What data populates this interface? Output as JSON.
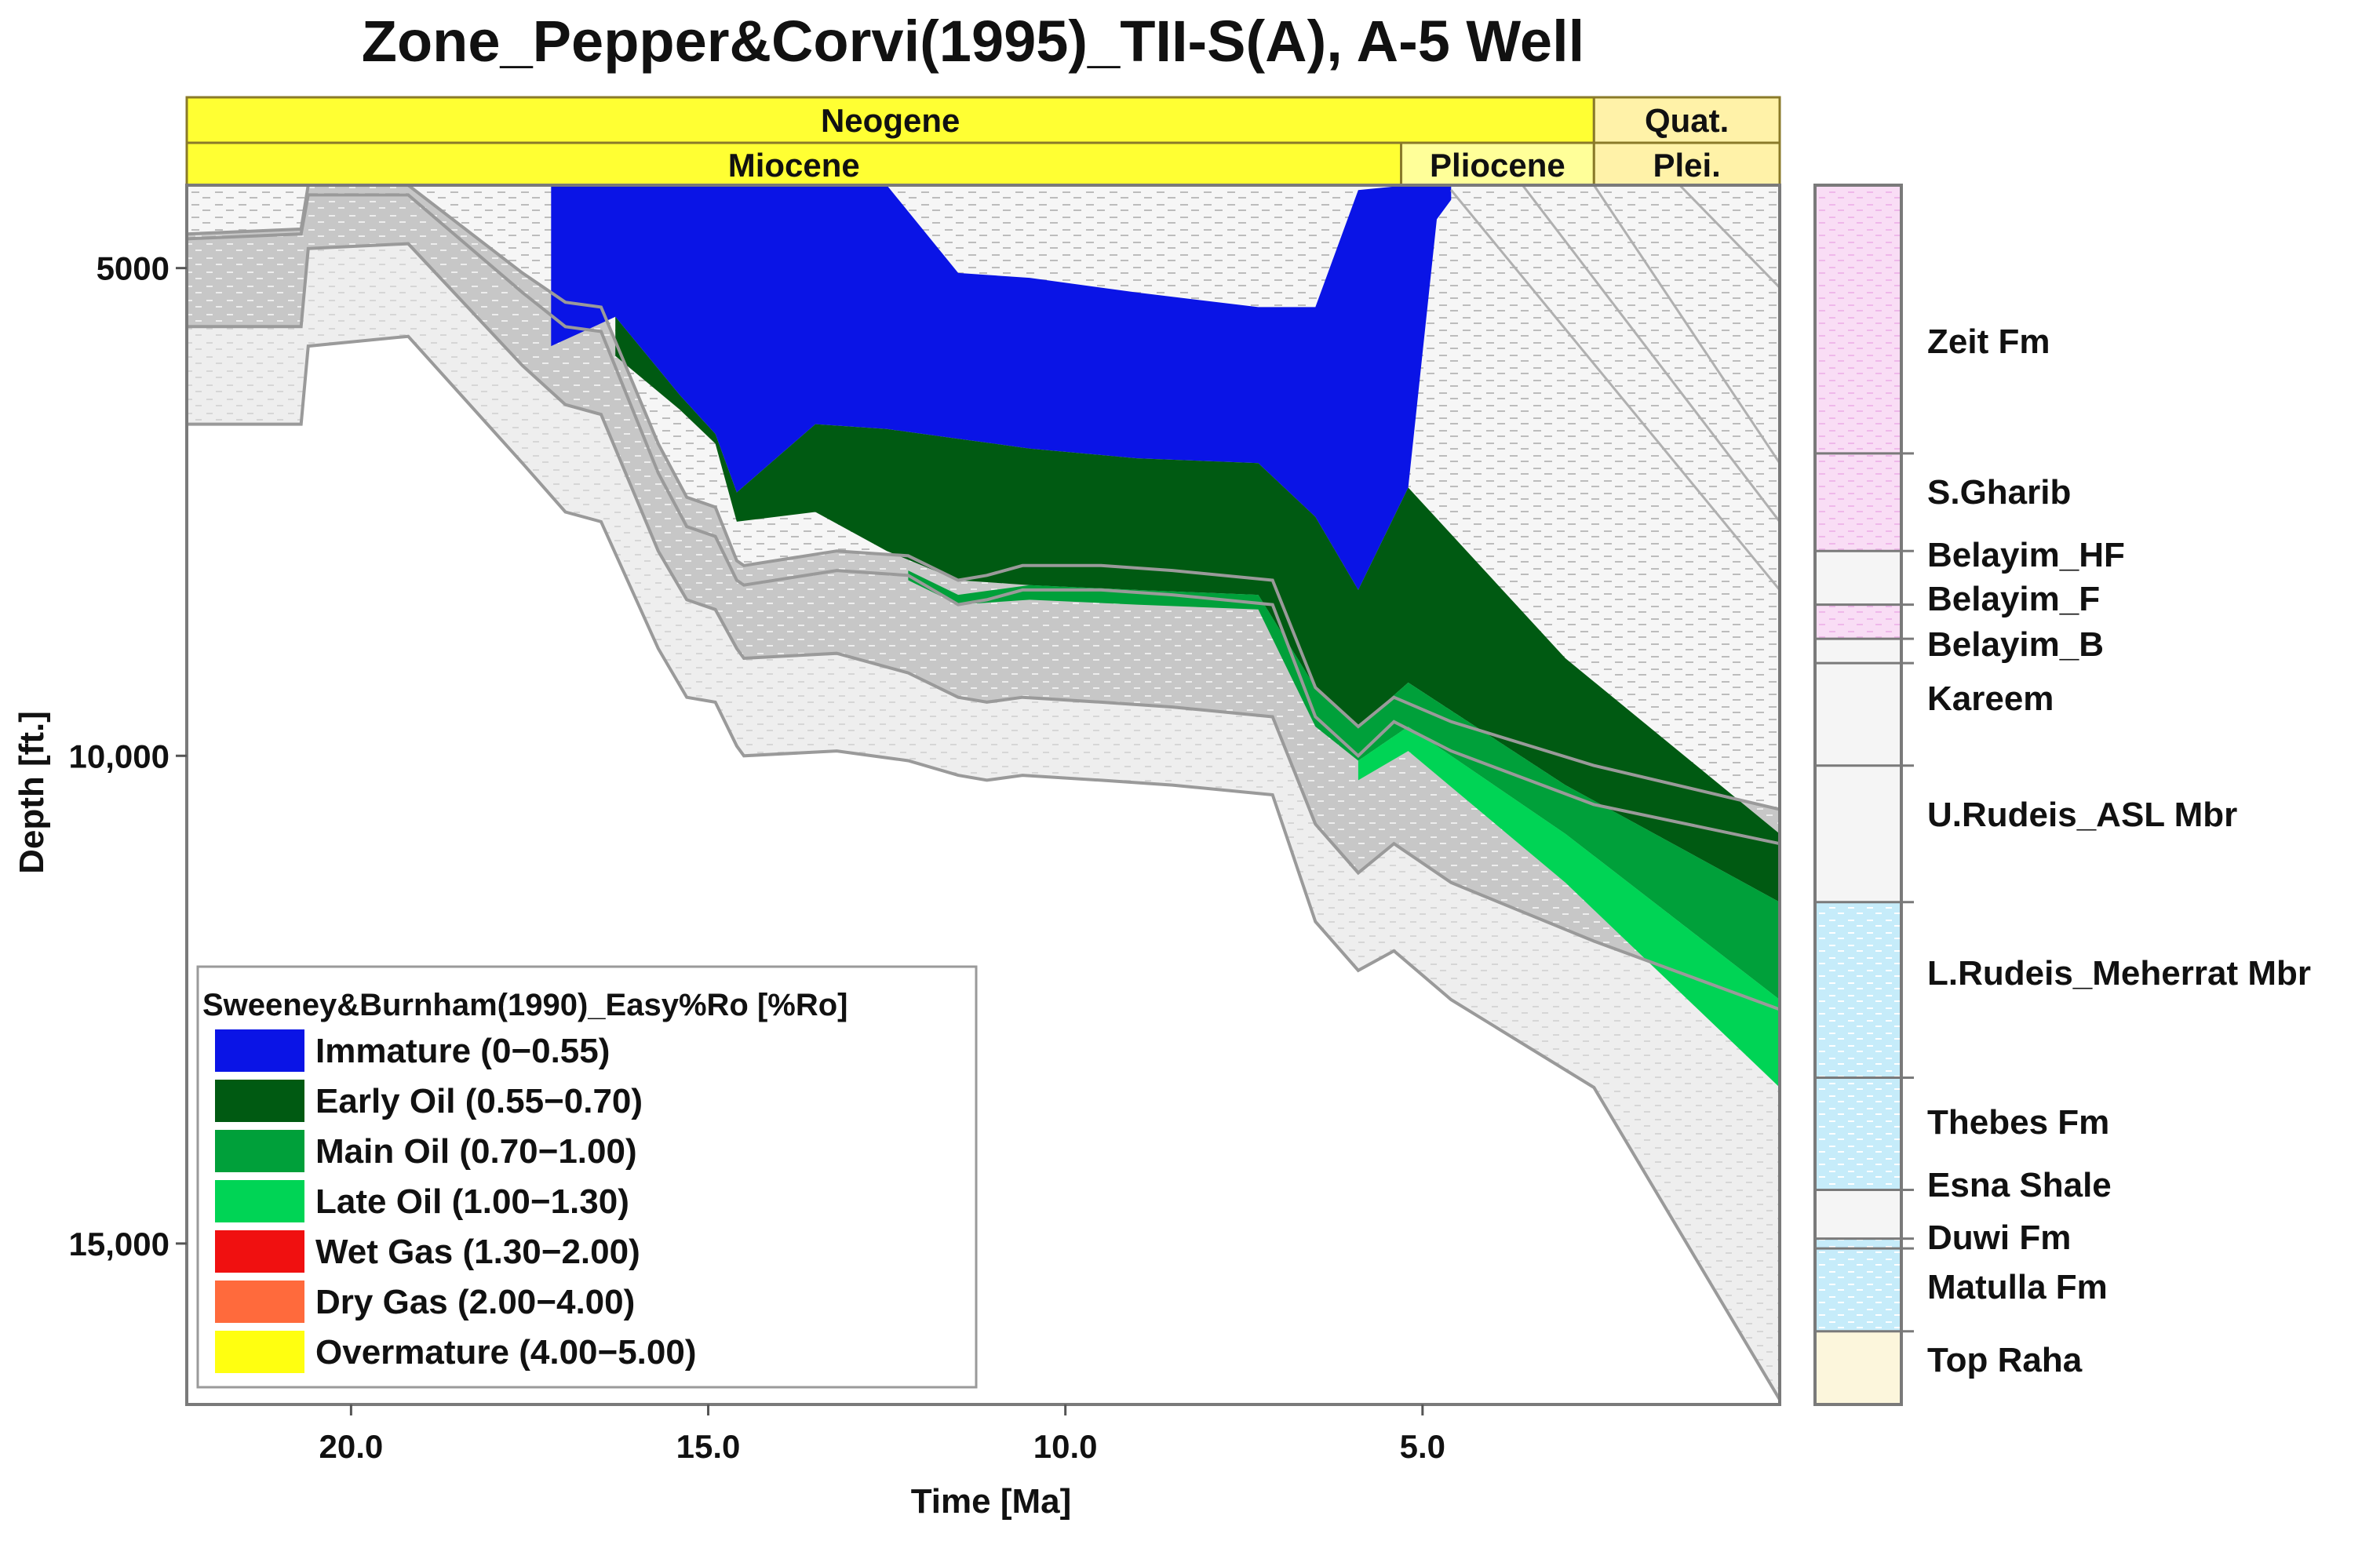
{
  "chart_data": {
    "type": "area",
    "title": "Zone_Pepper&Corvi(1995)_TII-S(A), A-5 Well",
    "xlabel": "Time [Ma]",
    "ylabel": "Depth [ft.]",
    "xlim": [
      22.3,
      0
    ],
    "ylim": [
      4150,
      16650
    ],
    "x_ticks": [
      {
        "value": 20,
        "label": "20.0"
      },
      {
        "value": 15,
        "label": "15.0"
      },
      {
        "value": 10,
        "label": "10.0"
      },
      {
        "value": 5,
        "label": "5.0"
      }
    ],
    "y_ticks": [
      {
        "value": 5000,
        "label": "5000"
      },
      {
        "value": 10000,
        "label": "10,000"
      },
      {
        "value": 15000,
        "label": "15,000"
      }
    ],
    "epochs_top": [
      {
        "label": "Neogene",
        "start": 22.3,
        "end": 2.6,
        "color": "#ffff33"
      },
      {
        "label": "Quat.",
        "start": 2.6,
        "end": 0,
        "color": "#fff2a8"
      }
    ],
    "epochs_bottom": [
      {
        "label": "Miocene",
        "start": 22.3,
        "end": 5.3,
        "color": "#ffff33"
      },
      {
        "label": "Pliocene",
        "start": 5.3,
        "end": 2.6,
        "color": "#ffff99"
      },
      {
        "label": "Plei.",
        "start": 2.6,
        "end": 0,
        "color": "#fff2a8"
      }
    ],
    "legend": {
      "title": "Sweeney&Burnham(1990)_Easy%Ro [%Ro]",
      "items": [
        {
          "label": "Immature (0−0.55)",
          "color": "#0a14e6"
        },
        {
          "label": "Early Oil (0.55−0.70)",
          "color": "#005a12"
        },
        {
          "label": "Main Oil (0.70−1.00)",
          "color": "#00a03a"
        },
        {
          "label": "Late Oil (1.00−1.30)",
          "color": "#00d455"
        },
        {
          "label": "Wet Gas (1.30−2.00)",
          "color": "#f01010"
        },
        {
          "label": "Dry Gas (2.00−4.00)",
          "color": "#ff6a3c"
        },
        {
          "label": "Overmature (4.00−5.00)",
          "color": "#ffff10"
        }
      ]
    },
    "layer_tops": [
      {
        "time": [
          22.3,
          20.7,
          20.6,
          19.2,
          0
        ],
        "depth": [
          4150,
          4150,
          4150,
          4150,
          4150
        ]
      },
      {
        "time": [
          22.3,
          20.7,
          20.6,
          19.2,
          17.6,
          17.0,
          16.5,
          15.7,
          15.3,
          14.9,
          14.6,
          14.5,
          13.2,
          12.2,
          11.5,
          11.1,
          10.6,
          9.5,
          8.5,
          7.1,
          6.5,
          5.9,
          5.4,
          4.6,
          2.6,
          0
        ],
        "depth": [
          4650,
          4600,
          4150,
          4150,
          5050,
          5350,
          5400,
          6800,
          7350,
          7450,
          8000,
          8050,
          7900,
          7950,
          8200,
          8150,
          8050,
          8050,
          8100,
          8200,
          9300,
          9700,
          9400,
          9650,
          10100,
          10550
        ]
      },
      {
        "time": [
          22.3,
          20.7,
          20.6,
          19.2,
          17.6,
          17.0,
          16.5,
          15.7,
          15.3,
          14.9,
          14.6,
          14.5,
          13.2,
          12.2,
          11.5,
          11.1,
          10.6,
          9.5,
          8.5,
          7.1,
          6.5,
          5.9,
          5.4,
          4.6,
          2.6,
          0
        ],
        "depth": [
          4700,
          4650,
          4250,
          4250,
          5250,
          5600,
          5650,
          7100,
          7650,
          7750,
          8200,
          8250,
          8100,
          8150,
          8450,
          8400,
          8300,
          8300,
          8350,
          8450,
          9600,
          10000,
          9650,
          9950,
          10500,
          10900
        ]
      },
      {
        "time": [
          22.3,
          20.7,
          20.6,
          19.2,
          17.6,
          17.0,
          16.5,
          15.7,
          15.3,
          14.9,
          14.6,
          14.5,
          13.2,
          12.2,
          11.5,
          11.1,
          10.6,
          9.5,
          8.5,
          7.1,
          6.5,
          5.9,
          5.4,
          4.6,
          2.6,
          0
        ],
        "depth": [
          5600,
          5600,
          4800,
          4750,
          6000,
          6400,
          6500,
          7900,
          8400,
          8500,
          8900,
          9000,
          8950,
          9150,
          9400,
          9450,
          9400,
          9450,
          9500,
          9600,
          10700,
          11200,
          10900,
          11300,
          11900,
          12600
        ]
      },
      {
        "time": [
          22.3,
          20.7,
          20.6,
          19.2,
          17.6,
          17.0,
          16.5,
          15.7,
          15.3,
          14.9,
          14.6,
          14.5,
          13.2,
          12.2,
          11.5,
          11.1,
          10.6,
          9.5,
          8.5,
          7.1,
          6.5,
          5.9,
          5.4,
          4.6,
          2.6,
          0
        ],
        "depth": [
          6600,
          6600,
          5800,
          5700,
          7000,
          7500,
          7600,
          8900,
          9400,
          9450,
          9900,
          10000,
          9950,
          10050,
          10200,
          10250,
          10200,
          10250,
          10300,
          10400,
          11700,
          12200,
          12000,
          12500,
          13400,
          16600
        ]
      }
    ],
    "maturity_zones": [
      {
        "zone": "Immature (0−0.55)",
        "time": [
          17.2,
          16.3,
          15.4,
          14.9,
          14.6,
          13.5,
          12.5,
          11.5,
          10.5,
          9.0,
          7.3,
          6.5,
          5.9,
          5.2,
          4.8,
          4.6
        ],
        "depth_top": [
          4150,
          4150,
          4150,
          4150,
          4150,
          4150,
          4150,
          5050,
          5100,
          5250,
          5400,
          5400,
          4200,
          4150,
          4150,
          4150
        ],
        "depth_bottom": [
          5800,
          5500,
          6300,
          6700,
          7300,
          6600,
          6650,
          6750,
          6850,
          6950,
          7000,
          7550,
          8300,
          7250,
          4500,
          4300
        ]
      },
      {
        "zone": "Early Oil (0.55−0.70)",
        "time": [
          16.3,
          15.4,
          14.9,
          14.6,
          13.5,
          12.5,
          11.5,
          10.5,
          9.0,
          7.3,
          6.5,
          5.9,
          5.2,
          3.0,
          0
        ],
        "depth_top": [
          5500,
          6300,
          6700,
          7300,
          6600,
          6650,
          6750,
          6850,
          6950,
          7000,
          7550,
          8300,
          7250,
          9000,
          10800
        ],
        "depth_bottom": [
          5900,
          6450,
          6800,
          7600,
          7500,
          7900,
          8200,
          8250,
          8300,
          8350,
          9300,
          9700,
          9250,
          10300,
          11500
        ]
      },
      {
        "zone": "Main Oil (0.70−1.00)",
        "time": [
          12.2,
          11.5,
          10.5,
          9.0,
          7.3,
          6.5,
          5.9,
          5.2,
          3.0,
          0
        ],
        "depth_top": [
          8100,
          8350,
          8250,
          8300,
          8350,
          9300,
          9700,
          9250,
          10300,
          11500
        ],
        "depth_bottom": [
          8200,
          8450,
          8400,
          8450,
          8500,
          9700,
          10050,
          9700,
          10800,
          12500
        ]
      },
      {
        "zone": "Late Oil (1.00−1.30)",
        "time": [
          5.9,
          5.2,
          3.0,
          0
        ],
        "depth_top": [
          10050,
          9700,
          10800,
          12500
        ],
        "depth_bottom": [
          10250,
          9950,
          11300,
          13400
        ]
      }
    ],
    "formations": [
      {
        "name": "Zeit Fm",
        "top_depth": 4150,
        "base_depth": 6900,
        "color": "#f9ddf5"
      },
      {
        "name": "S.Gharib",
        "top_depth": 6900,
        "base_depth": 7900,
        "color": "#f9ddf5"
      },
      {
        "name": "Belayim_HF",
        "top_depth": 7900,
        "base_depth": 8450,
        "color": "#f5f5f5"
      },
      {
        "name": "Belayim_F",
        "top_depth": 8450,
        "base_depth": 8800,
        "color": "#f3cdf0"
      },
      {
        "name": "Belayim_B",
        "top_depth": 8800,
        "base_depth": 9050,
        "color": "#f5f5f5"
      },
      {
        "name": "Kareem",
        "top_depth": 9050,
        "base_depth": 10100,
        "color": "#f5f5f5"
      },
      {
        "name": "U.Rudeis_ASL Mbr",
        "top_depth": 10100,
        "base_depth": 11500,
        "color": "#f5f5f5"
      },
      {
        "name": "L.Rudeis_Meherrat Mbr",
        "top_depth": 11500,
        "base_depth": 13300,
        "color": "#c6ecfa"
      },
      {
        "name": "Thebes Fm",
        "top_depth": 13300,
        "base_depth": 14450,
        "color": "#c6ecfa"
      },
      {
        "name": "Esna Shale",
        "top_depth": 14450,
        "base_depth": 14950,
        "color": "#f5f5f5"
      },
      {
        "name": "Duwi Fm",
        "top_depth": 14950,
        "base_depth": 15050,
        "color": "#c6ecfa"
      },
      {
        "name": "Matulla Fm",
        "top_depth": 15050,
        "base_depth": 15900,
        "color": "#c6ecfa"
      },
      {
        "name": "Top Raha",
        "top_depth": 15900,
        "base_depth": 16650,
        "color": "#fcf6dc"
      }
    ]
  }
}
